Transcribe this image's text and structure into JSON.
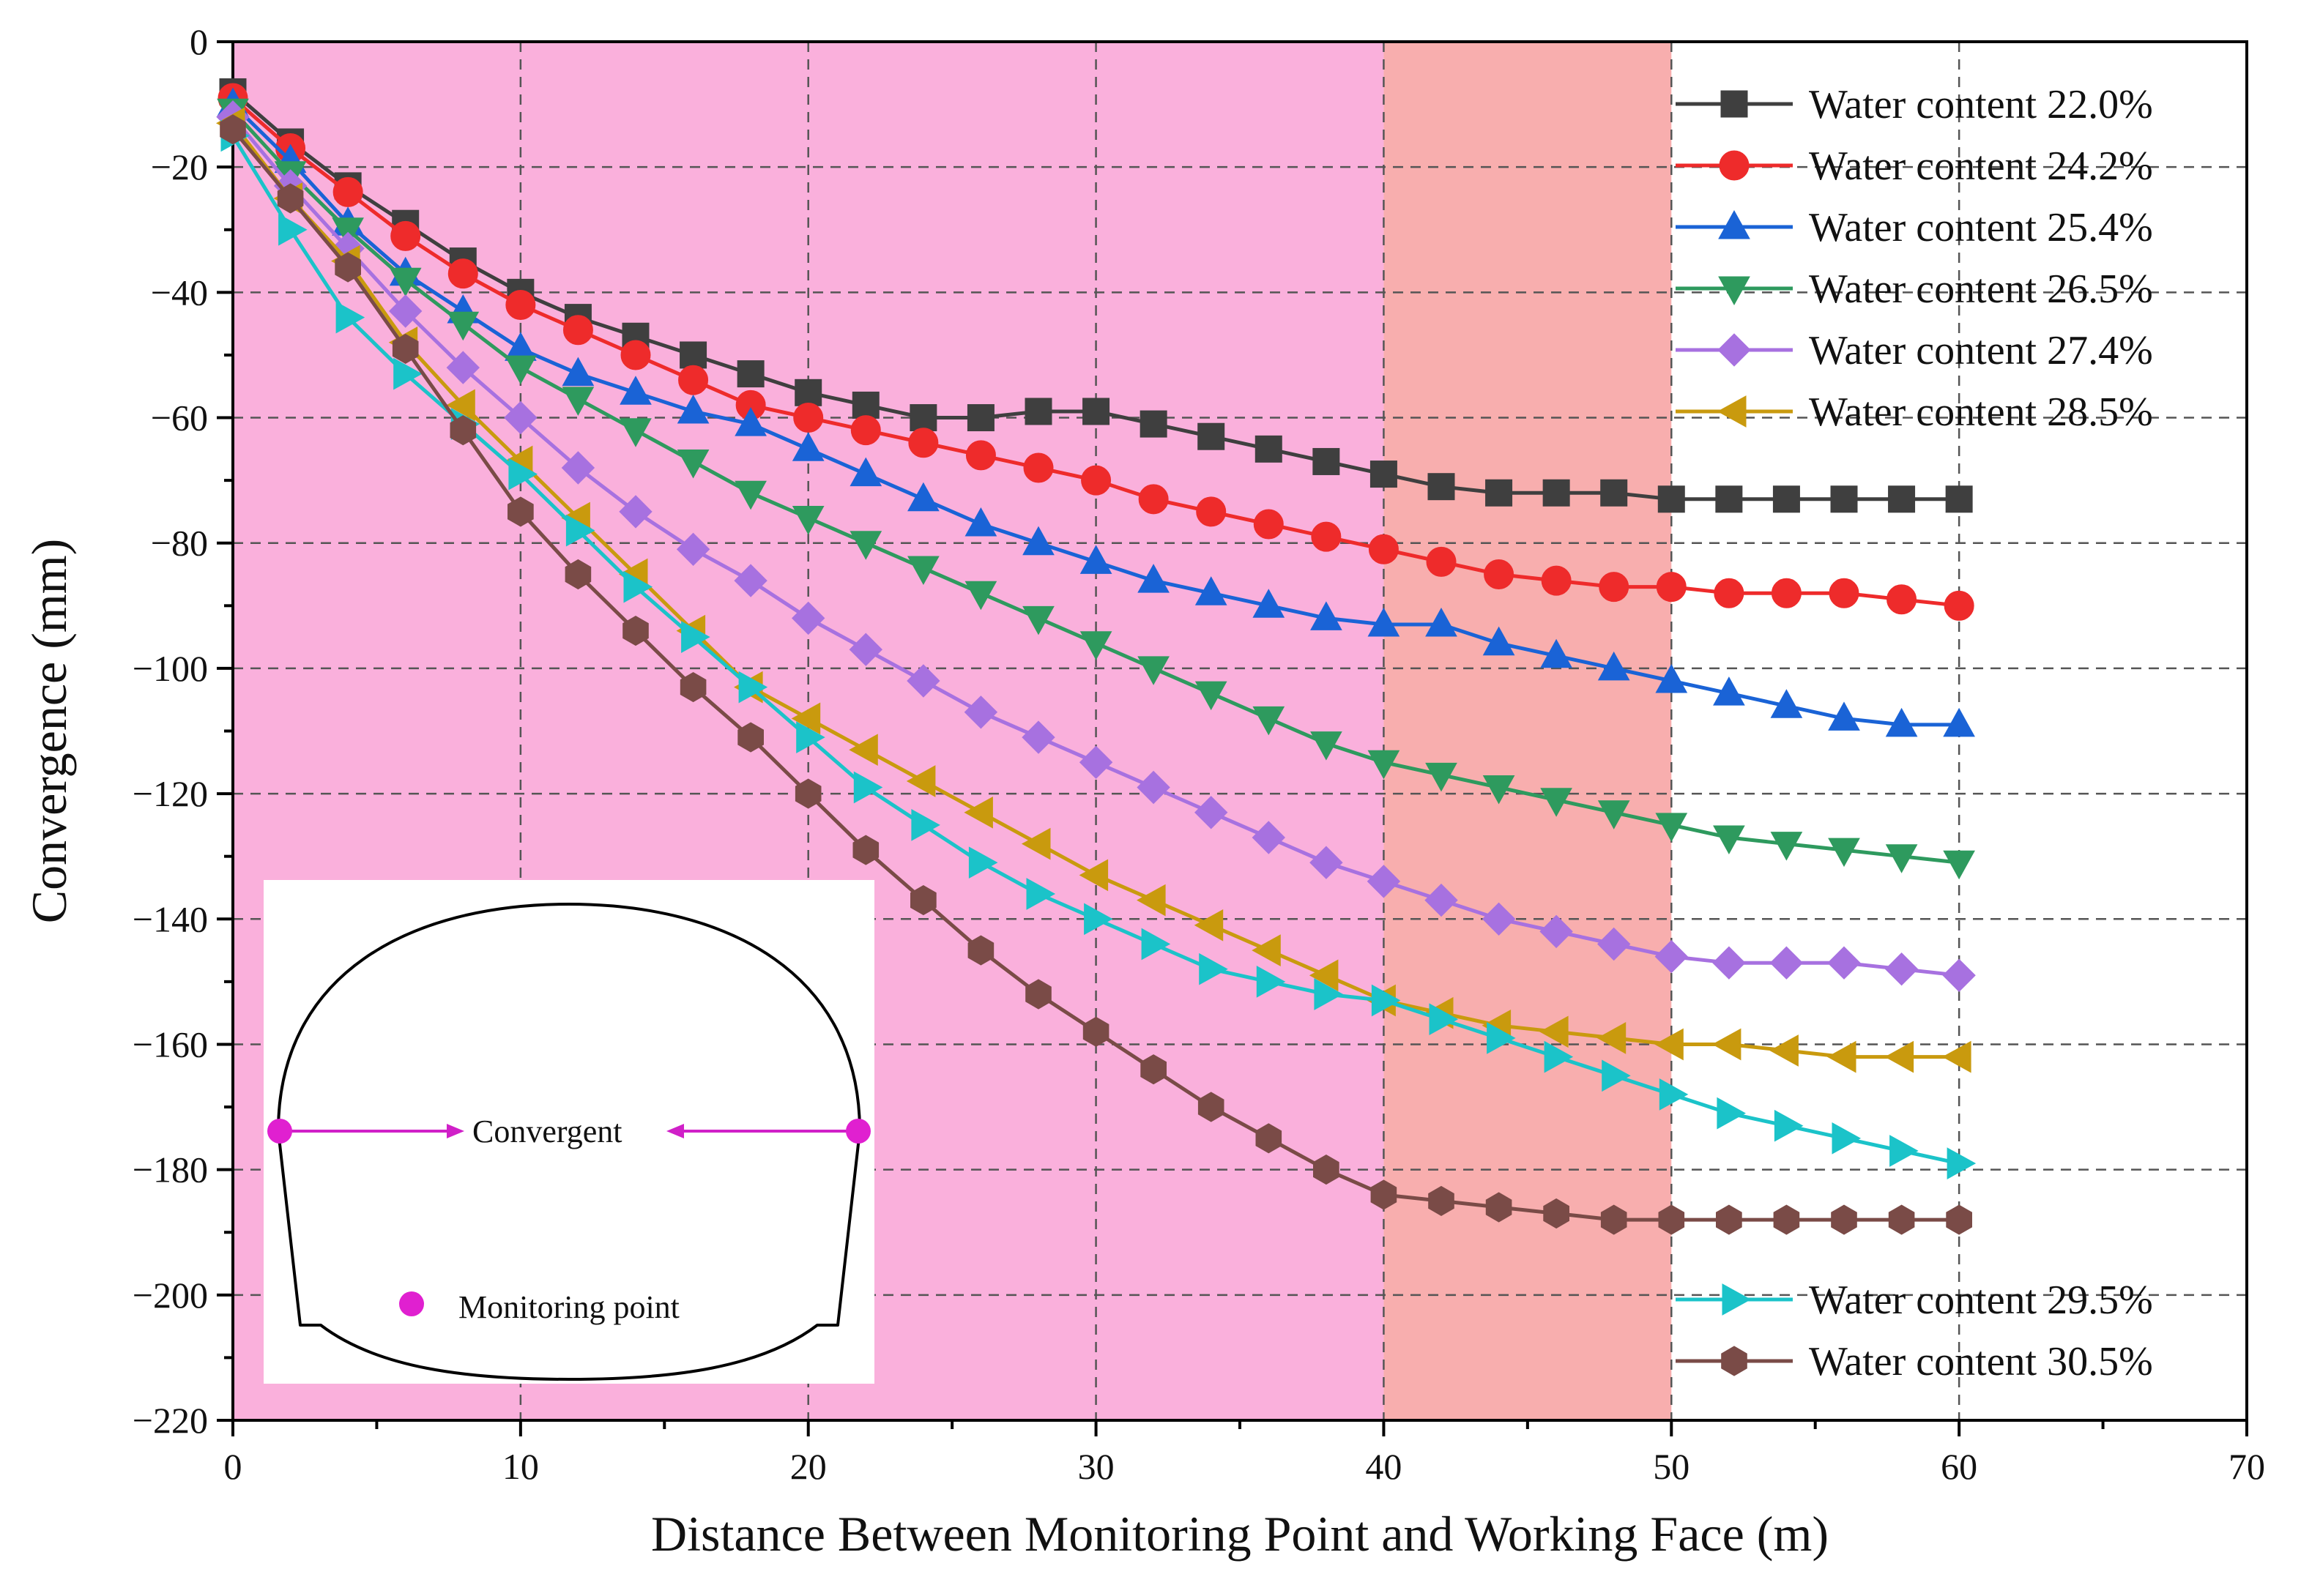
{
  "chart_data": {
    "type": "line",
    "title": "",
    "xlabel": "Distance Between Monitoring Point and Working Face (m)",
    "ylabel": "Convergence (mm)",
    "xlim": [
      0,
      70
    ],
    "ylim": [
      -220,
      0
    ],
    "xticks": [
      0,
      10,
      20,
      30,
      40,
      50,
      60,
      70
    ],
    "yticks": [
      0,
      -20,
      -40,
      -60,
      -80,
      -100,
      -120,
      -140,
      -160,
      -180,
      -200,
      -220
    ],
    "grid": true,
    "shaded_regions": [
      {
        "from": 0,
        "to": 40,
        "color": "#fab0dc"
      },
      {
        "from": 40,
        "to": 50,
        "color": "#f8aeae"
      }
    ],
    "x": [
      0,
      2,
      4,
      6,
      8,
      10,
      12,
      14,
      16,
      18,
      20,
      22,
      24,
      26,
      28,
      30,
      32,
      34,
      36,
      38,
      40,
      42,
      44,
      46,
      48,
      50,
      52,
      54,
      56,
      58,
      60
    ],
    "series": [
      {
        "name": "Water content 22.0%",
        "color": "#3f3f3f",
        "marker": "square",
        "values": [
          -8,
          -16,
          -23,
          -29,
          -35,
          -40,
          -44,
          -47,
          -50,
          -53,
          -56,
          -58,
          -60,
          -60,
          -59,
          -59,
          -61,
          -63,
          -65,
          -67,
          -69,
          -71,
          -72,
          -72,
          -72,
          -73,
          -73,
          -73,
          -73,
          -73,
          -73
        ]
      },
      {
        "name": "Water content 24.2%",
        "color": "#ee2b2b",
        "marker": "circle",
        "values": [
          -9,
          -17,
          -24,
          -31,
          -37,
          -42,
          -46,
          -50,
          -54,
          -58,
          -60,
          -62,
          -64,
          -66,
          -68,
          -70,
          -73,
          -75,
          -77,
          -79,
          -81,
          -83,
          -85,
          -86,
          -87,
          -87,
          -88,
          -88,
          -88,
          -89,
          -90
        ]
      },
      {
        "name": "Water content 25.4%",
        "color": "#1a63d6",
        "marker": "triangle-up",
        "values": [
          -10,
          -19,
          -29,
          -37,
          -43,
          -49,
          -53,
          -56,
          -59,
          -61,
          -65,
          -69,
          -73,
          -77,
          -80,
          -83,
          -86,
          -88,
          -90,
          -92,
          -93,
          -93,
          -96,
          -98,
          -100,
          -102,
          -104,
          -106,
          -108,
          -109,
          -109
        ]
      },
      {
        "name": "Water content 26.5%",
        "color": "#2e9a5e",
        "marker": "triangle-down",
        "values": [
          -11,
          -21,
          -30,
          -38,
          -45,
          -52,
          -57,
          -62,
          -67,
          -72,
          -76,
          -80,
          -84,
          -88,
          -92,
          -96,
          -100,
          -104,
          -108,
          -112,
          -115,
          -117,
          -119,
          -121,
          -123,
          -125,
          -127,
          -128,
          -129,
          -130,
          -131
        ]
      },
      {
        "name": "Water content 27.4%",
        "color": "#a771e0",
        "marker": "diamond",
        "values": [
          -12,
          -23,
          -33,
          -43,
          -52,
          -60,
          -68,
          -75,
          -81,
          -86,
          -92,
          -97,
          -102,
          -107,
          -111,
          -115,
          -119,
          -123,
          -127,
          -131,
          -134,
          -137,
          -140,
          -142,
          -144,
          -146,
          -147,
          -147,
          -147,
          -148,
          -149
        ]
      },
      {
        "name": "Water content 28.5%",
        "color": "#c99a0e",
        "marker": "triangle-left",
        "values": [
          -13,
          -25,
          -35,
          -48,
          -58,
          -67,
          -76,
          -85,
          -94,
          -103,
          -108,
          -113,
          -118,
          -123,
          -128,
          -133,
          -137,
          -141,
          -145,
          -149,
          -153,
          -155,
          -157,
          -158,
          -159,
          -160,
          -160,
          -161,
          -162,
          -162,
          -162
        ]
      },
      {
        "name": "Water content 29.5%",
        "color": "#1bc3c9",
        "marker": "triangle-right",
        "values": [
          -15,
          -30,
          -44,
          -53,
          -61,
          -69,
          -78,
          -87,
          -95,
          -103,
          -111,
          -119,
          -125,
          -131,
          -136,
          -140,
          -144,
          -148,
          -150,
          -152,
          -153,
          -156,
          -159,
          -162,
          -165,
          -168,
          -171,
          -173,
          -175,
          -177,
          -179
        ]
      },
      {
        "name": "Water content 30.5%",
        "color": "#7a4b47",
        "marker": "hexagon",
        "values": [
          -14,
          -25,
          -36,
          -49,
          -62,
          -75,
          -85,
          -94,
          -103,
          -111,
          -120,
          -129,
          -137,
          -145,
          -152,
          -158,
          -164,
          -170,
          -175,
          -180,
          -184,
          -185,
          -186,
          -187,
          -188,
          -188,
          -188,
          -188,
          -188,
          -188,
          -188
        ]
      }
    ],
    "legend": {
      "groups": [
        {
          "position": "top-right",
          "series": [
            0,
            1,
            2,
            3,
            4,
            5
          ]
        },
        {
          "position": "bottom-right",
          "series": [
            6,
            7
          ]
        }
      ]
    },
    "inset": {
      "convergent_label": "Convergent",
      "monitoring_label": "Monitoring point",
      "marker_color": "#e020d0",
      "arrow_color": "#d020c8"
    }
  }
}
